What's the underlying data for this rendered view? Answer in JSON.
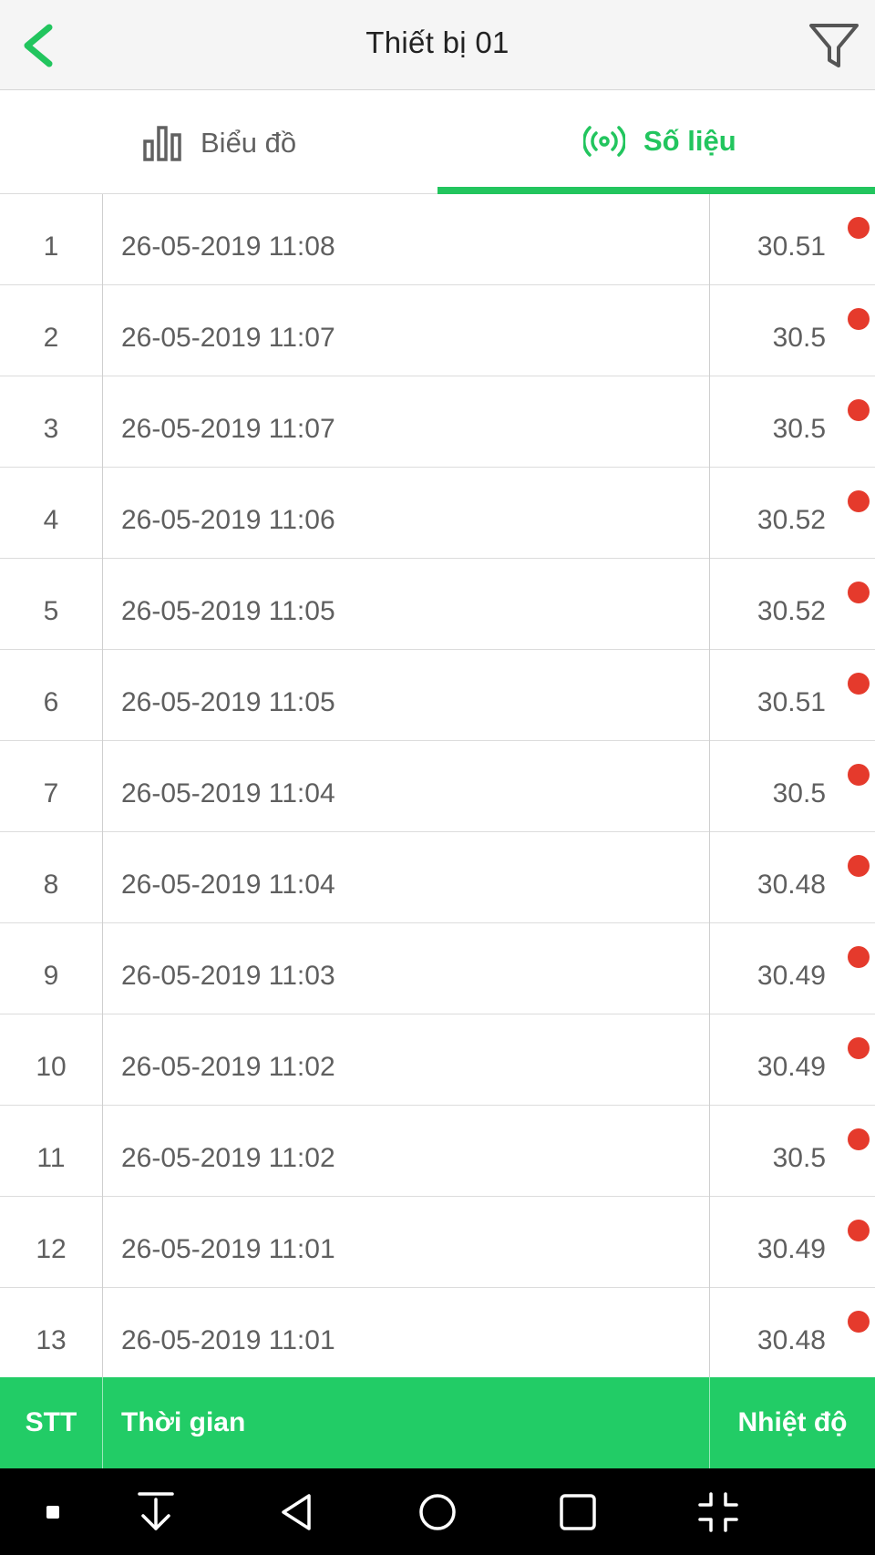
{
  "header": {
    "title": "Thiết bị 01",
    "back_icon": "chevron-left-icon",
    "filter_icon": "filter-icon"
  },
  "tabs": [
    {
      "label": "Biểu đồ",
      "icon": "bar-chart-icon",
      "active": false
    },
    {
      "label": "Số liệu",
      "icon": "broadcast-icon",
      "active": true
    }
  ],
  "colors": {
    "accent": "#22c55e",
    "header_bar": "#22cc66",
    "status_dot": "#e53a2c"
  },
  "table": {
    "columns": [
      "STT",
      "Thời gian",
      "Nhiệt độ"
    ],
    "rows": [
      {
        "stt": "1",
        "time": "26-05-2019 11:08",
        "value": "30.51"
      },
      {
        "stt": "2",
        "time": "26-05-2019 11:07",
        "value": "30.5"
      },
      {
        "stt": "3",
        "time": "26-05-2019 11:07",
        "value": "30.5"
      },
      {
        "stt": "4",
        "time": "26-05-2019 11:06",
        "value": "30.52"
      },
      {
        "stt": "5",
        "time": "26-05-2019 11:05",
        "value": "30.52"
      },
      {
        "stt": "6",
        "time": "26-05-2019 11:05",
        "value": "30.51"
      },
      {
        "stt": "7",
        "time": "26-05-2019 11:04",
        "value": "30.5"
      },
      {
        "stt": "8",
        "time": "26-05-2019 11:04",
        "value": "30.48"
      },
      {
        "stt": "9",
        "time": "26-05-2019 11:03",
        "value": "30.49"
      },
      {
        "stt": "10",
        "time": "26-05-2019 11:02",
        "value": "30.49"
      },
      {
        "stt": "11",
        "time": "26-05-2019 11:02",
        "value": "30.5"
      },
      {
        "stt": "12",
        "time": "26-05-2019 11:01",
        "value": "30.49"
      },
      {
        "stt": "13",
        "time": "26-05-2019 11:01",
        "value": "30.48"
      }
    ]
  },
  "navbar": {
    "icons": [
      "dot-icon",
      "download-icon",
      "back-triangle-icon",
      "home-circle-icon",
      "recents-square-icon",
      "collapse-icon"
    ]
  }
}
